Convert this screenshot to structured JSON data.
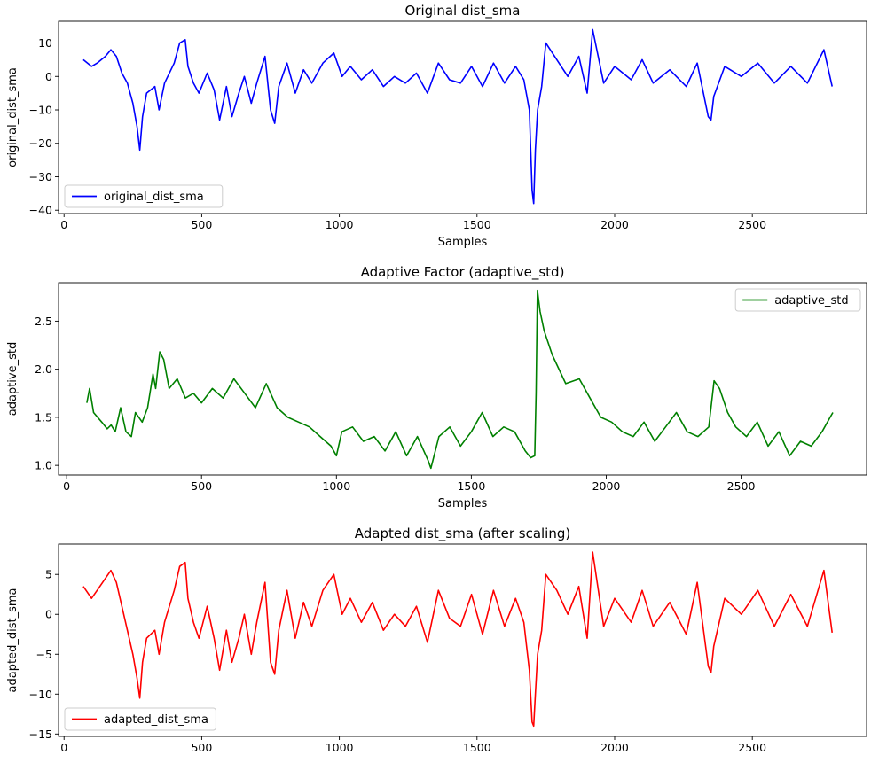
{
  "chart_data": [
    {
      "type": "line",
      "title": "Original dist_sma",
      "xlabel": "Samples",
      "ylabel": "original_dist_sma",
      "xlim": [
        -20,
        2915
      ],
      "ylim": [
        -41,
        16.5
      ],
      "xticks": [
        0,
        500,
        1000,
        1500,
        2000,
        2500
      ],
      "yticks": [
        10,
        0,
        -10,
        -20,
        -30,
        -40
      ],
      "grid": false,
      "legend_placement": "lower-left",
      "series": [
        {
          "name": "original_dist_sma",
          "color": "#0000ff",
          "x": [
            70,
            100,
            120,
            150,
            170,
            190,
            210,
            230,
            250,
            265,
            275,
            285,
            300,
            330,
            345,
            365,
            400,
            420,
            440,
            450,
            470,
            490,
            520,
            545,
            565,
            590,
            610,
            635,
            655,
            680,
            700,
            730,
            750,
            765,
            780,
            810,
            840,
            870,
            900,
            940,
            980,
            1010,
            1040,
            1080,
            1120,
            1160,
            1200,
            1240,
            1280,
            1320,
            1360,
            1400,
            1440,
            1480,
            1520,
            1560,
            1600,
            1640,
            1670,
            1690,
            1700,
            1706,
            1712,
            1720,
            1735,
            1750,
            1790,
            1830,
            1870,
            1900,
            1920,
            1960,
            2000,
            2060,
            2100,
            2140,
            2200,
            2260,
            2300,
            2340,
            2350,
            2360,
            2400,
            2460,
            2520,
            2580,
            2640,
            2700,
            2760,
            2790
          ],
          "y": [
            5,
            3,
            4,
            6,
            8,
            6,
            1,
            -2,
            -8,
            -15,
            -22,
            -12,
            -5,
            -3,
            -10,
            -2,
            4,
            10,
            11,
            3,
            -2,
            -5,
            1,
            -4,
            -13,
            -3,
            -12,
            -5,
            0,
            -8,
            -2,
            6,
            -10,
            -14,
            -3,
            4,
            -5,
            2,
            -2,
            4,
            7,
            0,
            3,
            -1,
            2,
            -3,
            0,
            -2,
            1,
            -5,
            4,
            -1,
            -2,
            3,
            -3,
            4,
            -2,
            3,
            -1,
            -10,
            -34,
            -38,
            -22,
            -10,
            -3,
            10,
            5,
            0,
            6,
            -5,
            14,
            -2,
            3,
            -1,
            5,
            -2,
            2,
            -3,
            4,
            -12,
            -13,
            -6,
            3,
            0,
            4,
            -2,
            3,
            -2,
            8,
            -3
          ]
        }
      ]
    },
    {
      "type": "line",
      "title": "Adaptive Factor (adaptive_std)",
      "xlabel": "Samples",
      "ylabel": "adaptive_std",
      "xlim": [
        -30,
        2965
      ],
      "ylim": [
        0.9,
        2.9
      ],
      "xticks": [
        0,
        500,
        1000,
        1500,
        2000,
        2500
      ],
      "yticks": [
        2.5,
        2.0,
        1.5,
        1.0
      ],
      "grid": false,
      "legend_placement": "upper-right",
      "series": [
        {
          "name": "adaptive_std",
          "color": "#008000",
          "x": [
            75,
            85,
            100,
            130,
            150,
            165,
            180,
            200,
            220,
            240,
            255,
            280,
            300,
            320,
            330,
            345,
            360,
            380,
            410,
            440,
            470,
            500,
            540,
            580,
            620,
            660,
            700,
            740,
            780,
            820,
            860,
            900,
            940,
            980,
            1000,
            1020,
            1060,
            1100,
            1140,
            1180,
            1220,
            1260,
            1300,
            1340,
            1350,
            1380,
            1420,
            1460,
            1500,
            1540,
            1580,
            1620,
            1660,
            1700,
            1720,
            1735,
            1740,
            1745,
            1755,
            1770,
            1800,
            1850,
            1900,
            1940,
            1980,
            2020,
            2060,
            2100,
            2140,
            2180,
            2220,
            2260,
            2300,
            2340,
            2380,
            2400,
            2420,
            2450,
            2480,
            2520,
            2560,
            2600,
            2640,
            2680,
            2720,
            2760,
            2800,
            2830,
            2840
          ],
          "y": [
            1.65,
            1.8,
            1.55,
            1.45,
            1.38,
            1.42,
            1.35,
            1.6,
            1.35,
            1.3,
            1.55,
            1.45,
            1.6,
            1.95,
            1.8,
            2.18,
            2.1,
            1.8,
            1.9,
            1.7,
            1.75,
            1.65,
            1.8,
            1.7,
            1.9,
            1.75,
            1.6,
            1.85,
            1.6,
            1.5,
            1.45,
            1.4,
            1.3,
            1.2,
            1.1,
            1.35,
            1.4,
            1.25,
            1.3,
            1.15,
            1.35,
            1.1,
            1.3,
            1.05,
            0.97,
            1.3,
            1.4,
            1.2,
            1.35,
            1.55,
            1.3,
            1.4,
            1.35,
            1.15,
            1.08,
            1.1,
            1.75,
            2.82,
            2.6,
            2.4,
            2.15,
            1.85,
            1.9,
            1.7,
            1.5,
            1.45,
            1.35,
            1.3,
            1.45,
            1.25,
            1.4,
            1.55,
            1.35,
            1.3,
            1.4,
            1.88,
            1.8,
            1.55,
            1.4,
            1.3,
            1.45,
            1.2,
            1.35,
            1.1,
            1.25,
            1.2,
            1.35,
            1.5,
            1.55
          ]
        }
      ]
    },
    {
      "type": "line",
      "title": "Adapted dist_sma (after scaling)",
      "xlabel": "",
      "ylabel": "adapted_dist_sma",
      "xlim": [
        -20,
        2915
      ],
      "ylim": [
        -15.3,
        8.8
      ],
      "xticks": [
        0,
        500,
        1000,
        1500,
        2000,
        2500
      ],
      "yticks": [
        5,
        0,
        -5,
        -10,
        -15
      ],
      "grid": false,
      "legend_placement": "lower-left",
      "series": [
        {
          "name": "adapted_dist_sma",
          "color": "#ff0000",
          "x": [
            70,
            100,
            120,
            150,
            170,
            190,
            210,
            230,
            250,
            265,
            275,
            285,
            300,
            330,
            345,
            365,
            400,
            420,
            440,
            450,
            470,
            490,
            520,
            545,
            565,
            590,
            610,
            635,
            655,
            680,
            700,
            730,
            750,
            765,
            780,
            810,
            840,
            870,
            900,
            940,
            980,
            1010,
            1040,
            1080,
            1120,
            1160,
            1200,
            1240,
            1280,
            1320,
            1360,
            1400,
            1440,
            1480,
            1520,
            1560,
            1600,
            1640,
            1670,
            1690,
            1700,
            1706,
            1712,
            1720,
            1735,
            1750,
            1790,
            1830,
            1870,
            1900,
            1920,
            1960,
            2000,
            2060,
            2100,
            2140,
            2200,
            2260,
            2300,
            2340,
            2350,
            2360,
            2400,
            2460,
            2520,
            2580,
            2640,
            2700,
            2760,
            2790
          ],
          "y": [
            3.5,
            2,
            3,
            4.5,
            5.5,
            4,
            1,
            -2,
            -5,
            -8,
            -10.5,
            -6,
            -3,
            -2,
            -5,
            -1,
            3,
            6,
            6.5,
            2,
            -1,
            -3,
            1,
            -3,
            -7,
            -2,
            -6,
            -3,
            0,
            -5,
            -1,
            4,
            -6,
            -7.5,
            -2,
            3,
            -3,
            1.5,
            -1.5,
            3,
            5,
            0,
            2,
            -1,
            1.5,
            -2,
            0,
            -1.5,
            1,
            -3.5,
            3,
            -0.5,
            -1.5,
            2.5,
            -2.5,
            3,
            -1.5,
            2,
            -1,
            -7,
            -13.5,
            -14,
            -10,
            -5,
            -2,
            5,
            3,
            0,
            3.5,
            -3,
            7.8,
            -1.5,
            2,
            -1,
            3,
            -1.5,
            1.5,
            -2.5,
            4,
            -6.5,
            -7.3,
            -4,
            2,
            0,
            3,
            -1.5,
            2.5,
            -1.5,
            5.5,
            -2.3
          ]
        }
      ]
    }
  ]
}
